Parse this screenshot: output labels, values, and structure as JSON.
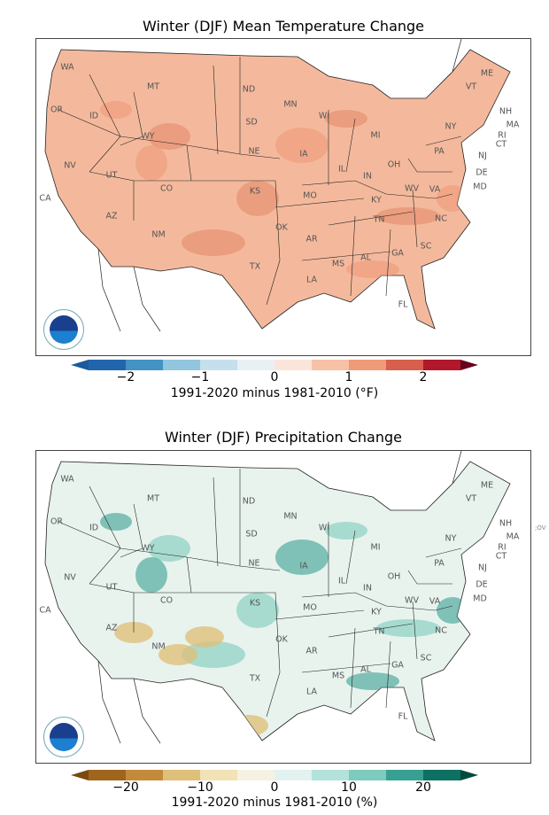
{
  "maps": [
    {
      "title": "Winter (DJF) Mean Temperature Change",
      "colorbar": {
        "ticks": [
          "−2",
          "−1",
          "0",
          "1",
          "2"
        ],
        "label": "1991-2020 minus 1981-2010 (°F)",
        "colors": [
          "#2166ac",
          "#4393c3",
          "#92c5de",
          "#c6dfed",
          "#e8f0f4",
          "#fbe5da",
          "#f7c1a6",
          "#ef9a79",
          "#d6604d",
          "#b2182b"
        ],
        "under": "#1b5a9e",
        "over": "#67001f",
        "fill": "#f4b99c",
        "accent": "#e58a6c"
      }
    },
    {
      "title": "Winter (DJF) Precipitation Change",
      "colorbar": {
        "ticks": [
          "−20",
          "−10",
          "0",
          "10",
          "20"
        ],
        "label": "1991-2020 minus 1981-2010 (%)",
        "colors": [
          "#a0651d",
          "#c48a3c",
          "#dfc07a",
          "#f2e2b5",
          "#f6f2e2",
          "#e2f2ef",
          "#b2e2d9",
          "#7ccbbd",
          "#38a092",
          "#0e7062"
        ],
        "under": "#7a4a10",
        "over": "#00493c",
        "fill": "#e8f3ee",
        "accent": "#7ccbbd"
      }
    }
  ],
  "states": [
    "WA",
    "OR",
    "ID",
    "MT",
    "WY",
    "NV",
    "UT",
    "CO",
    "CA",
    "AZ",
    "NM",
    "ND",
    "SD",
    "NE",
    "KS",
    "OK",
    "TX",
    "MN",
    "IA",
    "MO",
    "AR",
    "LA",
    "WI",
    "IL",
    "MS",
    "MI",
    "IN",
    "KY",
    "TN",
    "AL",
    "OH",
    "GA",
    "FL",
    "WV",
    "VA",
    "NC",
    "SC",
    "PA",
    "NY",
    "VT",
    "ME",
    "NH",
    "MA",
    "RI",
    "CT",
    "NJ",
    "DE",
    "MD"
  ],
  "logo_text": "NOAA",
  "side_text": ";OV"
}
